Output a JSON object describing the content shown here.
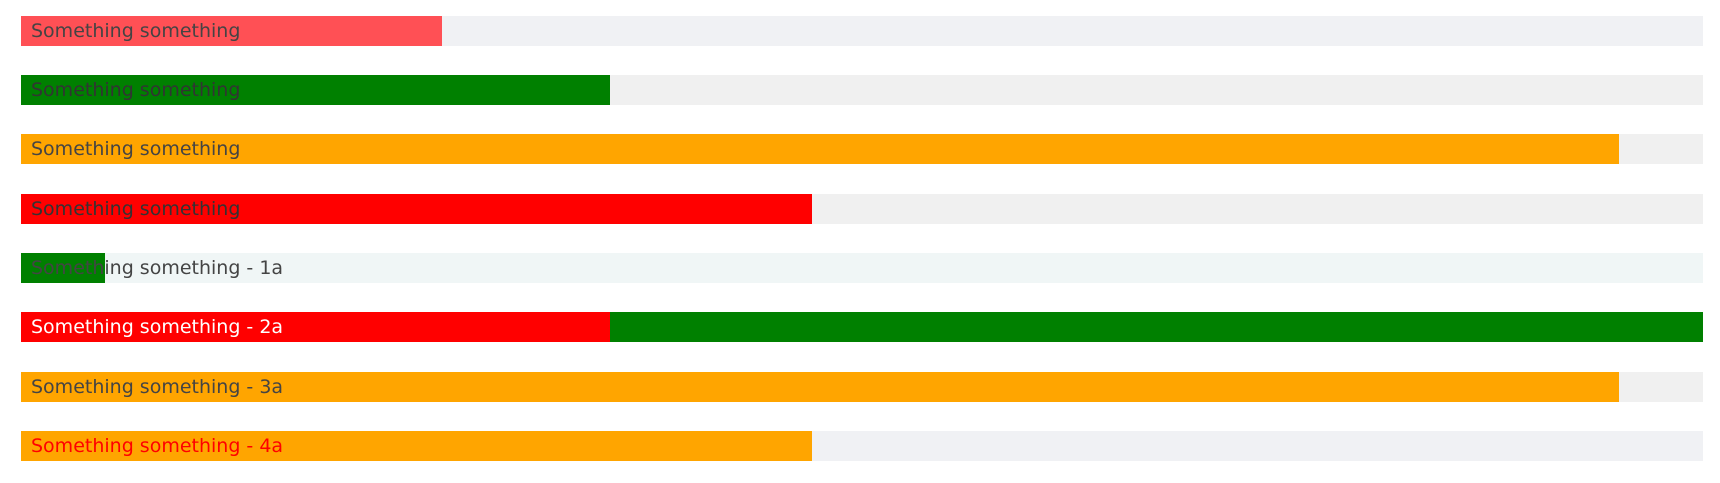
{
  "bars": [
    {
      "label": "Something something",
      "track_color": "#f0f1f4",
      "fill_color": "#ff5055",
      "fill_pct": 25,
      "label_color": "#444444"
    },
    {
      "label": "Something something",
      "track_color": "#f0f0f0",
      "fill_color": "#008000",
      "fill_pct": 35,
      "label_color": "#333333"
    },
    {
      "label": "Something something",
      "track_color": "#f0f0f0",
      "fill_color": "#ffa500",
      "fill_pct": 95,
      "label_color": "#444444"
    },
    {
      "label": "Something something",
      "track_color": "#f0f0f0",
      "fill_color": "#ff0000",
      "fill_pct": 47,
      "label_color": "#333333"
    },
    {
      "label": "Something something - 1a",
      "track_color": "#f0f6f6",
      "fill_color": "#008000",
      "fill_pct": 5,
      "label_color": "#444444"
    },
    {
      "label": "Something something - 2a",
      "track_color": "#008000",
      "fill_color": "#ff0000",
      "fill_pct": 35,
      "label_color": "#ffffff"
    },
    {
      "label": "Something something - 3a",
      "track_color": "#f0f0f0",
      "fill_color": "#ffa500",
      "fill_pct": 95,
      "label_color": "#444444"
    },
    {
      "label": "Something something - 4a",
      "track_color": "#f0f1f4",
      "fill_color": "#ffa500",
      "fill_pct": 47,
      "label_color": "#ff0000"
    }
  ]
}
